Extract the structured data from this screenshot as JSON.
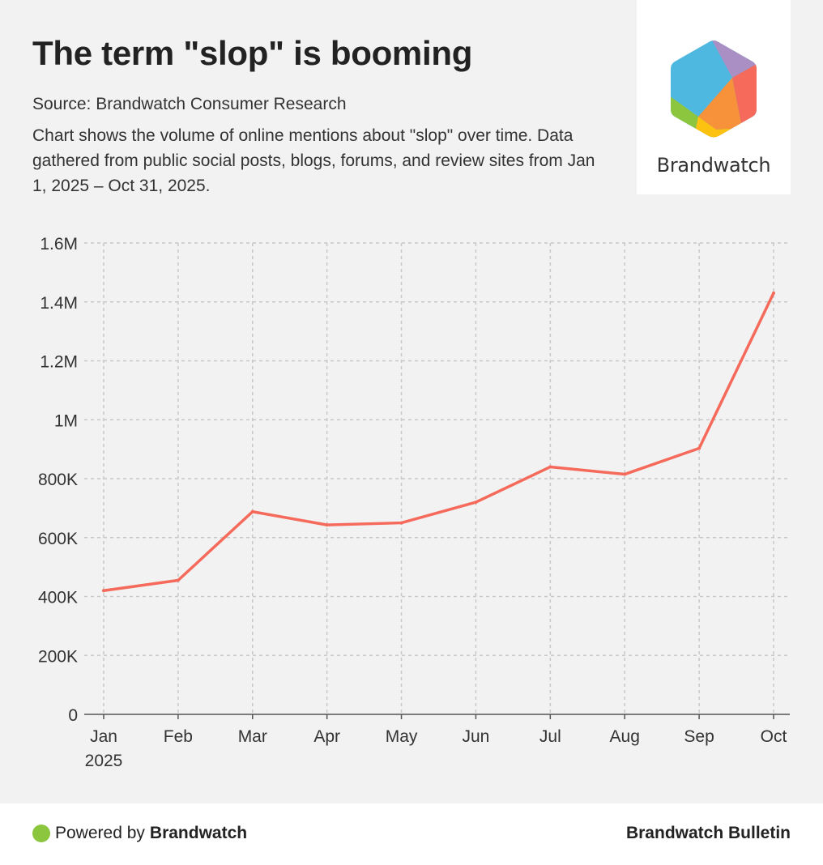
{
  "header": {
    "title": "The term \"slop\" is booming",
    "source": "Source: Brandwatch Consumer Research",
    "description": "Chart shows the volume of online mentions about \"slop\" over time. Data gathered from public social posts, blogs, forums, and review sites from Jan 1, 2025 – Oct 31, 2025."
  },
  "logo": {
    "wordmark": "Brandwatch",
    "icon": "brandwatch-hexagon-logo",
    "colors": {
      "blue": "#4fb8e0",
      "purple": "#a98fc3",
      "red": "#f56a5a",
      "orange": "#f7923a",
      "yellow": "#fdc20f",
      "green": "#8cc63f"
    }
  },
  "chart_data": {
    "type": "line",
    "title": "",
    "xlabel": "",
    "ylabel": "",
    "categories": [
      "Jan",
      "Feb",
      "Mar",
      "Apr",
      "May",
      "Jun",
      "Jul",
      "Aug",
      "Sep",
      "Oct"
    ],
    "year_label": "2025",
    "values": [
      420000,
      455000,
      688000,
      643000,
      650000,
      720000,
      840000,
      815000,
      903000,
      1430000
    ],
    "ylim": [
      0,
      1600000
    ],
    "yticks": [
      0,
      200000,
      400000,
      600000,
      800000,
      1000000,
      1200000,
      1400000,
      1600000
    ],
    "ytick_labels": [
      "0",
      "200K",
      "400K",
      "600K",
      "800K",
      "1M",
      "1.2M",
      "1.4M",
      "1.6M"
    ],
    "grid": true,
    "line_color": "#f56a5a",
    "grid_color": "#c8c8c8"
  },
  "footer": {
    "powered_prefix": "Powered by",
    "powered_brand": "Brandwatch",
    "right_label": "Brandwatch Bulletin",
    "dot_color": "#8cc63f"
  }
}
